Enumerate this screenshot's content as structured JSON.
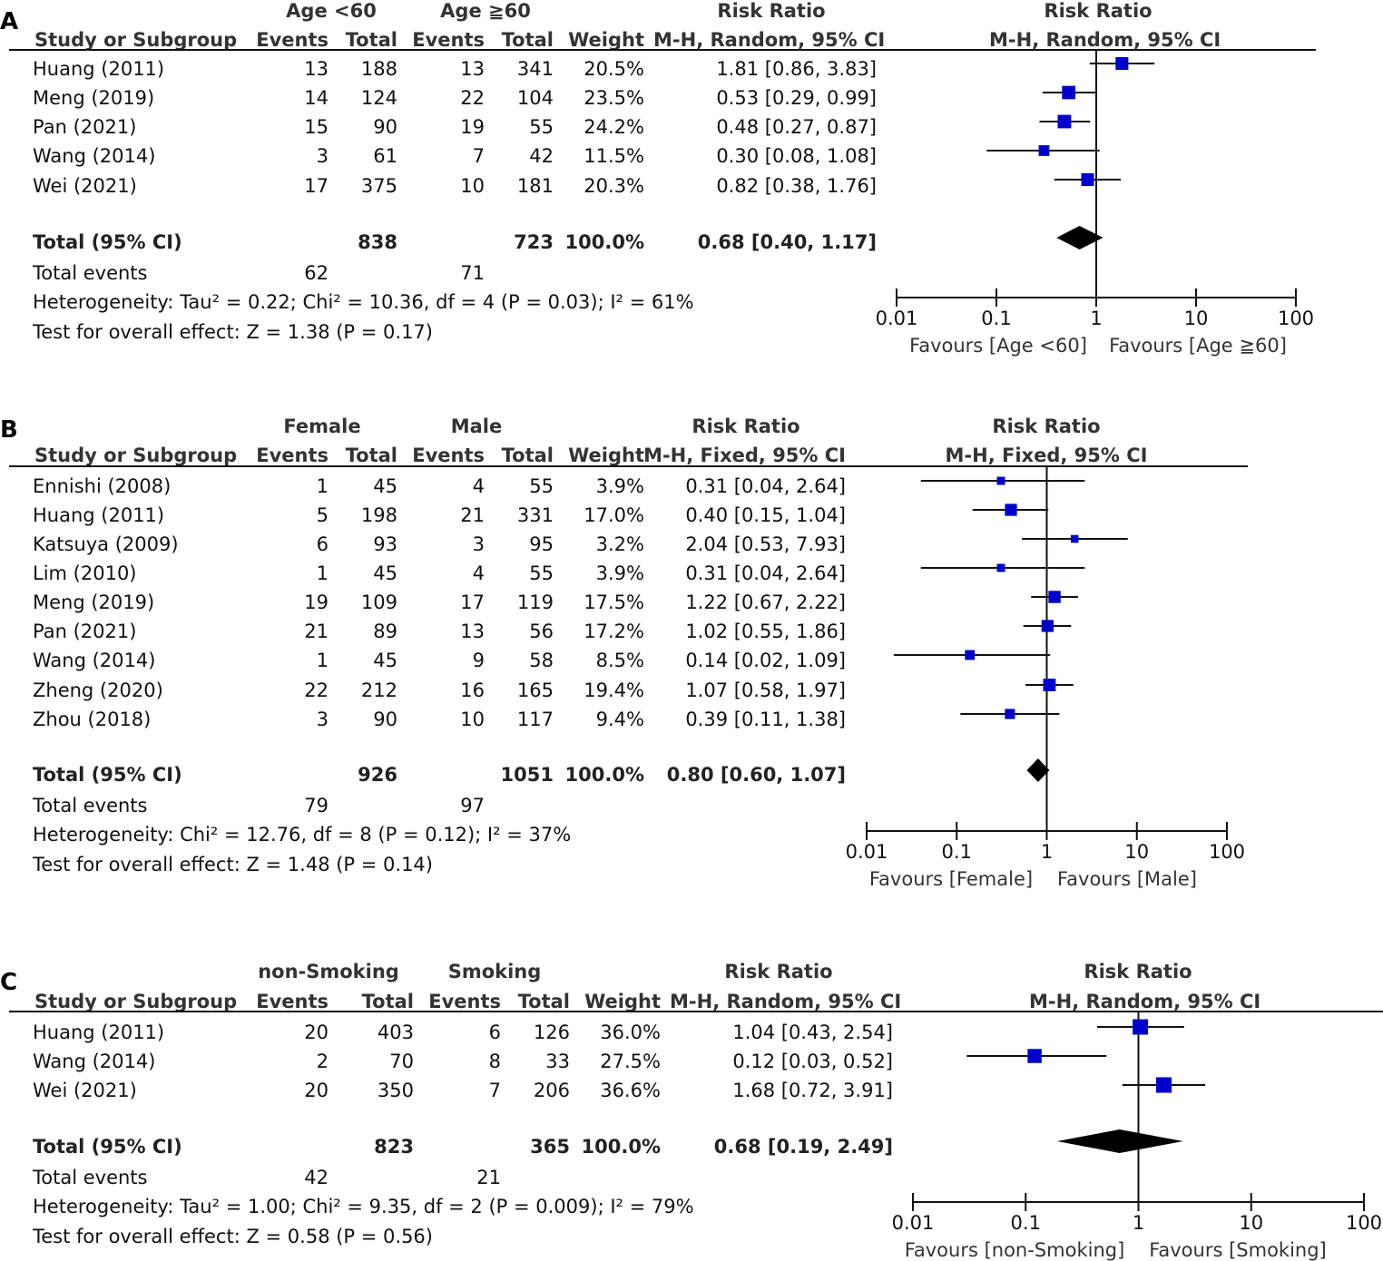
{
  "chart_data": [
    {
      "type": "forest",
      "panel": "A",
      "model": "M-H, Random, 95% CI",
      "groups": [
        "Age <60",
        "Age ≧60"
      ],
      "headers": {
        "study": "Study or Subgroup",
        "events": "Events",
        "total": "Total",
        "weight": "Weight",
        "rr": "Risk Ratio",
        "method": "M-H, Random, 95% CI"
      },
      "studies": [
        {
          "name": "Huang (2011)",
          "e1": "13",
          "n1": "188",
          "e2": "13",
          "n2": "341",
          "weight": "20.5%",
          "rr_text": "1.81 [0.86, 3.83]",
          "rr": 1.81,
          "lo": 0.86,
          "hi": 3.83,
          "w": 20.5
        },
        {
          "name": "Meng (2019)",
          "e1": "14",
          "n1": "124",
          "e2": "22",
          "n2": "104",
          "weight": "23.5%",
          "rr_text": "0.53 [0.29, 0.99]",
          "rr": 0.53,
          "lo": 0.29,
          "hi": 0.99,
          "w": 23.5
        },
        {
          "name": "Pan (2021)",
          "e1": "15",
          "n1": "90",
          "e2": "19",
          "n2": "55",
          "weight": "24.2%",
          "rr_text": "0.48 [0.27, 0.87]",
          "rr": 0.48,
          "lo": 0.27,
          "hi": 0.87,
          "w": 24.2
        },
        {
          "name": "Wang (2014)",
          "e1": "3",
          "n1": "61",
          "e2": "7",
          "n2": "42",
          "weight": "11.5%",
          "rr_text": "0.30 [0.08, 1.08]",
          "rr": 0.3,
          "lo": 0.08,
          "hi": 1.08,
          "w": 11.5
        },
        {
          "name": "Wei (2021)",
          "e1": "17",
          "n1": "375",
          "e2": "10",
          "n2": "181",
          "weight": "20.3%",
          "rr_text": "0.82 [0.38, 1.76]",
          "rr": 0.82,
          "lo": 0.38,
          "hi": 1.76,
          "w": 20.3
        }
      ],
      "total": {
        "label": "Total (95% CI)",
        "n1": "838",
        "n2": "723",
        "weight": "100.0%",
        "rr_text": "0.68 [0.40, 1.17]",
        "rr": 0.68,
        "lo": 0.4,
        "hi": 1.17
      },
      "events": {
        "label": "Total events",
        "e1": "62",
        "e2": "71"
      },
      "heterogeneity": "Heterogeneity: Tau² = 0.22; Chi² = 10.36, df = 4 (P = 0.03); I² = 61%",
      "overall": "Test for overall effect: Z = 1.38 (P = 0.17)",
      "axis_ticks": [
        "0.01",
        "0.1",
        "1",
        "10",
        "100"
      ],
      "favours_left": "Favours [Age <60]",
      "favours_right": "Favours [Age ≧60]"
    },
    {
      "type": "forest",
      "panel": "B",
      "model": "M-H, Fixed, 95% CI",
      "groups": [
        "Female",
        "Male"
      ],
      "headers": {
        "study": "Study or Subgroup",
        "events": "Events",
        "total": "Total",
        "weight": "Weight",
        "rr": "Risk Ratio",
        "method": "M-H, Fixed, 95% CI"
      },
      "studies": [
        {
          "name": "Ennishi (2008)",
          "e1": "1",
          "n1": "45",
          "e2": "4",
          "n2": "55",
          "weight": "3.9%",
          "rr_text": "0.31 [0.04, 2.64]",
          "rr": 0.31,
          "lo": 0.04,
          "hi": 2.64,
          "w": 3.9
        },
        {
          "name": "Huang (2011)",
          "e1": "5",
          "n1": "198",
          "e2": "21",
          "n2": "331",
          "weight": "17.0%",
          "rr_text": "0.40 [0.15, 1.04]",
          "rr": 0.4,
          "lo": 0.15,
          "hi": 1.04,
          "w": 17.0
        },
        {
          "name": "Katsuya (2009)",
          "e1": "6",
          "n1": "93",
          "e2": "3",
          "n2": "95",
          "weight": "3.2%",
          "rr_text": "2.04 [0.53, 7.93]",
          "rr": 2.04,
          "lo": 0.53,
          "hi": 7.93,
          "w": 3.2
        },
        {
          "name": "Lim (2010)",
          "e1": "1",
          "n1": "45",
          "e2": "4",
          "n2": "55",
          "weight": "3.9%",
          "rr_text": "0.31 [0.04, 2.64]",
          "rr": 0.31,
          "lo": 0.04,
          "hi": 2.64,
          "w": 3.9
        },
        {
          "name": "Meng (2019)",
          "e1": "19",
          "n1": "109",
          "e2": "17",
          "n2": "119",
          "weight": "17.5%",
          "rr_text": "1.22 [0.67, 2.22]",
          "rr": 1.22,
          "lo": 0.67,
          "hi": 2.22,
          "w": 17.5
        },
        {
          "name": "Pan (2021)",
          "e1": "21",
          "n1": "89",
          "e2": "13",
          "n2": "56",
          "weight": "17.2%",
          "rr_text": "1.02 [0.55, 1.86]",
          "rr": 1.02,
          "lo": 0.55,
          "hi": 1.86,
          "w": 17.2
        },
        {
          "name": "Wang (2014)",
          "e1": "1",
          "n1": "45",
          "e2": "9",
          "n2": "58",
          "weight": "8.5%",
          "rr_text": "0.14 [0.02, 1.09]",
          "rr": 0.14,
          "lo": 0.02,
          "hi": 1.09,
          "w": 8.5
        },
        {
          "name": "Zheng (2020)",
          "e1": "22",
          "n1": "212",
          "e2": "16",
          "n2": "165",
          "weight": "19.4%",
          "rr_text": "1.07 [0.58, 1.97]",
          "rr": 1.07,
          "lo": 0.58,
          "hi": 1.97,
          "w": 19.4
        },
        {
          "name": "Zhou (2018)",
          "e1": "3",
          "n1": "90",
          "e2": "10",
          "n2": "117",
          "weight": "9.4%",
          "rr_text": "0.39 [0.11, 1.38]",
          "rr": 0.39,
          "lo": 0.11,
          "hi": 1.38,
          "w": 9.4
        }
      ],
      "total": {
        "label": "Total (95% CI)",
        "n1": "926",
        "n2": "1051",
        "weight": "100.0%",
        "rr_text": "0.80 [0.60, 1.07]",
        "rr": 0.8,
        "lo": 0.6,
        "hi": 1.07
      },
      "events": {
        "label": "Total events",
        "e1": "79",
        "e2": "97"
      },
      "heterogeneity": "Heterogeneity: Chi² = 12.76, df = 8 (P = 0.12); I² = 37%",
      "overall": "Test for overall effect: Z = 1.48 (P = 0.14)",
      "axis_ticks": [
        "0.01",
        "0.1",
        "1",
        "10",
        "100"
      ],
      "favours_left": "Favours [Female]",
      "favours_right": "Favours [Male]"
    },
    {
      "type": "forest",
      "panel": "C",
      "model": "M-H, Random, 95% CI",
      "groups": [
        "non-Smoking",
        "Smoking"
      ],
      "headers": {
        "study": "Study or Subgroup",
        "events": "Events",
        "total": "Total",
        "weight": "Weight",
        "rr": "Risk Ratio",
        "method": "M-H, Random, 95% CI"
      },
      "studies": [
        {
          "name": "Huang (2011)",
          "e1": "20",
          "n1": "403",
          "e2": "6",
          "n2": "126",
          "weight": "36.0%",
          "rr_text": "1.04 [0.43, 2.54]",
          "rr": 1.04,
          "lo": 0.43,
          "hi": 2.54,
          "w": 36.0
        },
        {
          "name": "Wang (2014)",
          "e1": "2",
          "n1": "70",
          "e2": "8",
          "n2": "33",
          "weight": "27.5%",
          "rr_text": "0.12 [0.03, 0.52]",
          "rr": 0.12,
          "lo": 0.03,
          "hi": 0.52,
          "w": 27.5
        },
        {
          "name": "Wei (2021)",
          "e1": "20",
          "n1": "350",
          "e2": "7",
          "n2": "206",
          "weight": "36.6%",
          "rr_text": "1.68 [0.72, 3.91]",
          "rr": 1.68,
          "lo": 0.72,
          "hi": 3.91,
          "w": 36.6
        }
      ],
      "total": {
        "label": "Total (95% CI)",
        "n1": "823",
        "n2": "365",
        "weight": "100.0%",
        "rr_text": "0.68 [0.19, 2.49]",
        "rr": 0.68,
        "lo": 0.19,
        "hi": 2.49
      },
      "events": {
        "label": "Total events",
        "e1": "42",
        "e2": "21"
      },
      "heterogeneity": "Heterogeneity: Tau² = 1.00; Chi² = 9.35, df = 2 (P = 0.009); I² = 79%",
      "overall": "Test for overall effect: Z = 0.58 (P = 0.56)",
      "axis_ticks": [
        "0.01",
        "0.1",
        "1",
        "10",
        "100"
      ],
      "favours_left": "Favours [non-Smoking]",
      "favours_right": "Favours [Smoking]"
    }
  ],
  "colors": {
    "square": "#0000cc",
    "diamond": "#000000",
    "line": "#111111"
  }
}
